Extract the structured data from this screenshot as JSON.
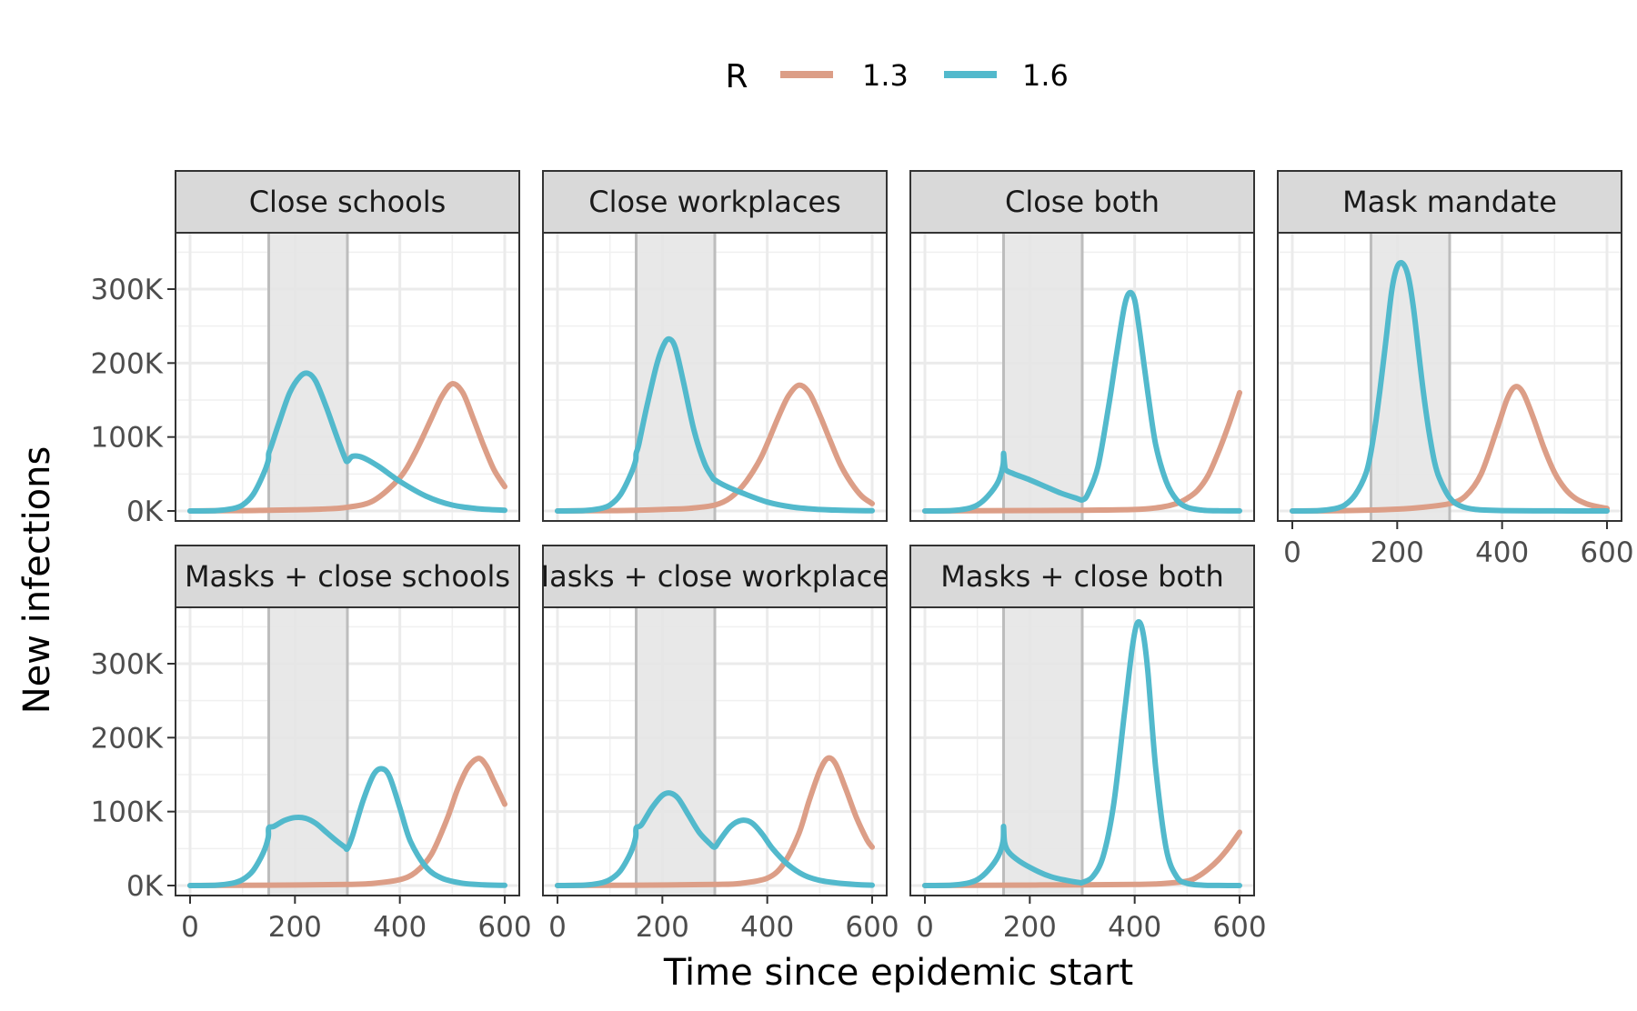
{
  "chart_data": {
    "type": "line",
    "xlabel": "Time since epidemic start",
    "ylabel": "New infections",
    "xlim": [
      0,
      600
    ],
    "ylim": [
      0,
      350000
    ],
    "x_ticks": [
      0,
      200,
      400,
      600
    ],
    "x_tick_labels": [
      "0",
      "200",
      "400",
      "600"
    ],
    "y_ticks": [
      0,
      100000,
      200000,
      300000
    ],
    "y_tick_labels": [
      "0K",
      "100K",
      "200K",
      "300K"
    ],
    "intervention_window": [
      150,
      300
    ],
    "grid": true,
    "legend": {
      "title": "R",
      "position": "top",
      "entries": [
        {
          "label": "1.3",
          "color": "#dc9e87"
        },
        {
          "label": "1.6",
          "color": "#52b9cc"
        }
      ]
    },
    "facets": [
      {
        "title": "Close schools",
        "series": [
          {
            "name": "1.3",
            "x": [
              0,
              100,
              150,
              200,
              250,
              300,
              350,
              400,
              430,
              460,
              480,
              500,
              520,
              540,
              560,
              580,
              600
            ],
            "y": [
              0,
              500,
              1000,
              1500,
              2500,
              5000,
              14000,
              45000,
              80000,
              125000,
              155000,
              172000,
              160000,
              125000,
              88000,
              55000,
              33000
            ]
          },
          {
            "name": "1.6",
            "x": [
              0,
              50,
              80,
              100,
              120,
              140,
              149,
              150,
              155,
              170,
              190,
              210,
              225,
              240,
              260,
              280,
              295,
              300,
              310,
              330,
              360,
              400,
              450,
              500,
              550,
              600
            ],
            "y": [
              0,
              500,
              3000,
              8000,
              22000,
              50000,
              68000,
              78000,
              88000,
              120000,
              160000,
              182000,
              186000,
              175000,
              140000,
              100000,
              72000,
              67000,
              74000,
              72000,
              60000,
              40000,
              20000,
              8000,
              3000,
              1000
            ]
          }
        ]
      },
      {
        "title": "Close workplaces",
        "series": [
          {
            "name": "1.3",
            "x": [
              0,
              100,
              150,
              200,
              250,
              300,
              330,
              360,
              390,
              420,
              440,
              460,
              480,
              500,
              520,
              540,
              560,
              580,
              600
            ],
            "y": [
              0,
              500,
              1000,
              2000,
              3500,
              8000,
              18000,
              40000,
              75000,
              125000,
              155000,
              170000,
              160000,
              130000,
              95000,
              62000,
              38000,
              20000,
              10000
            ]
          },
          {
            "name": "1.6",
            "x": [
              0,
              50,
              80,
              100,
              120,
              140,
              149,
              150,
              155,
              170,
              190,
              205,
              215,
              225,
              240,
              260,
              280,
              295,
              300,
              320,
              350,
              400,
              450,
              500,
              550,
              600
            ],
            "y": [
              0,
              500,
              3000,
              8000,
              22000,
              50000,
              68000,
              78000,
              90000,
              140000,
              200000,
              228000,
              232000,
              220000,
              175000,
              110000,
              65000,
              46000,
              42000,
              34000,
              25000,
              12000,
              5000,
              2000,
              700,
              200
            ]
          }
        ]
      },
      {
        "title": "Close both",
        "series": [
          {
            "name": "1.3",
            "x": [
              0,
              150,
              300,
              400,
              450,
              480,
              500,
              520,
              540,
              560,
              580,
              600
            ],
            "y": [
              0,
              500,
              1000,
              2000,
              5000,
              10000,
              17000,
              28000,
              48000,
              80000,
              118000,
              160000
            ]
          },
          {
            "name": "1.6",
            "x": [
              0,
              50,
              80,
              100,
              120,
              140,
              149,
              150,
              152,
              155,
              170,
              200,
              230,
              260,
              290,
              300,
              310,
              330,
              350,
              365,
              380,
              390,
              400,
              410,
              425,
              440,
              460,
              480,
              500,
              530,
              560,
              600
            ],
            "y": [
              0,
              500,
              3000,
              8000,
              20000,
              40000,
              62000,
              78000,
              62000,
              55000,
              50000,
              42000,
              33000,
              24000,
              17000,
              15000,
              22000,
              60000,
              140000,
              210000,
              275000,
              295000,
              285000,
              240000,
              160000,
              90000,
              40000,
              15000,
              5000,
              1000,
              300,
              100
            ]
          }
        ]
      },
      {
        "title": "Mask mandate",
        "series": [
          {
            "name": "1.3",
            "x": [
              0,
              100,
              200,
              250,
              300,
              330,
              360,
              390,
              410,
              425,
              440,
              460,
              480,
              500,
              520,
              540,
              560,
              580,
              600
            ],
            "y": [
              0,
              500,
              2500,
              5000,
              10000,
              20000,
              50000,
              110000,
              152000,
              168000,
              160000,
              125000,
              85000,
              52000,
              30000,
              17000,
              10000,
              6000,
              3500
            ]
          },
          {
            "name": "1.6",
            "x": [
              0,
              50,
              80,
              100,
              120,
              140,
              150,
              160,
              170,
              180,
              190,
              200,
              210,
              220,
              230,
              240,
              250,
              260,
              270,
              280,
              300,
              320,
              350,
              400,
              500,
              600
            ],
            "y": [
              0,
              500,
              3000,
              8000,
              22000,
              50000,
              80000,
              125000,
              180000,
              240000,
              300000,
              330000,
              335000,
              320000,
              280000,
              220000,
              160000,
              110000,
              70000,
              45000,
              18000,
              7000,
              2000,
              500,
              100,
              0
            ]
          }
        ]
      },
      {
        "title": "Masks + close schools",
        "series": [
          {
            "name": "1.3",
            "x": [
              0,
              150,
              300,
              350,
              400,
              430,
              460,
              490,
              510,
              530,
              550,
              565,
              580,
              600
            ],
            "y": [
              0,
              500,
              1500,
              3000,
              8000,
              18000,
              42000,
              90000,
              130000,
              160000,
              172000,
              162000,
              140000,
              110000
            ]
          },
          {
            "name": "1.6",
            "x": [
              0,
              50,
              80,
              100,
              120,
              140,
              149,
              150,
              160,
              180,
              200,
              220,
              240,
              260,
              280,
              295,
              300,
              310,
              330,
              350,
              365,
              380,
              400,
              420,
              450,
              480,
              520,
              560,
              600
            ],
            "y": [
              0,
              500,
              3000,
              8000,
              20000,
              45000,
              65000,
              78000,
              80000,
              88000,
              92000,
              91000,
              84000,
              72000,
              60000,
              52000,
              50000,
              68000,
              115000,
              150000,
              158000,
              148000,
              105000,
              60000,
              25000,
              10000,
              3000,
              1000,
              300
            ]
          }
        ]
      },
      {
        "title": "Masks + close workplaces",
        "series": [
          {
            "name": "1.3",
            "x": [
              0,
              150,
              300,
              350,
              400,
              430,
              460,
              480,
              500,
              515,
              530,
              550,
              570,
              590,
              600
            ],
            "y": [
              0,
              500,
              1500,
              3000,
              10000,
              28000,
              70000,
              115000,
              155000,
              172000,
              165000,
              130000,
              92000,
              62000,
              52000
            ]
          },
          {
            "name": "1.6",
            "x": [
              0,
              50,
              80,
              100,
              120,
              140,
              149,
              150,
              160,
              180,
              200,
              215,
              230,
              250,
              270,
              290,
              300,
              310,
              330,
              350,
              370,
              390,
              410,
              440,
              470,
              500,
              540,
              580,
              600
            ],
            "y": [
              0,
              500,
              3000,
              8000,
              20000,
              45000,
              65000,
              78000,
              82000,
              105000,
              122000,
              125000,
              118000,
              95000,
              72000,
              57000,
              52000,
              62000,
              80000,
              88000,
              85000,
              70000,
              50000,
              28000,
              14000,
              7000,
              3000,
              1000,
              500
            ]
          }
        ]
      },
      {
        "title": "Masks + close both",
        "series": [
          {
            "name": "1.3",
            "x": [
              0,
              150,
              300,
              400,
              450,
              500,
              520,
              540,
              560,
              580,
              600
            ],
            "y": [
              0,
              500,
              1000,
              1500,
              2500,
              6000,
              12000,
              22000,
              35000,
              52000,
              72000
            ]
          },
          {
            "name": "1.6",
            "x": [
              0,
              50,
              80,
              100,
              120,
              140,
              149,
              150,
              152,
              160,
              180,
              210,
              240,
              270,
              295,
              300,
              320,
              340,
              360,
              380,
              395,
              405,
              415,
              425,
              440,
              460,
              480,
              500,
              530,
              560,
              600
            ],
            "y": [
              0,
              500,
              3000,
              8000,
              20000,
              40000,
              60000,
              80000,
              58000,
              45000,
              33000,
              21000,
              12000,
              7000,
              4000,
              4000,
              12000,
              40000,
              110000,
              230000,
              320000,
              355000,
              345000,
              290000,
              160000,
              50000,
              12000,
              3000,
              500,
              100,
              0
            ]
          }
        ]
      }
    ]
  }
}
